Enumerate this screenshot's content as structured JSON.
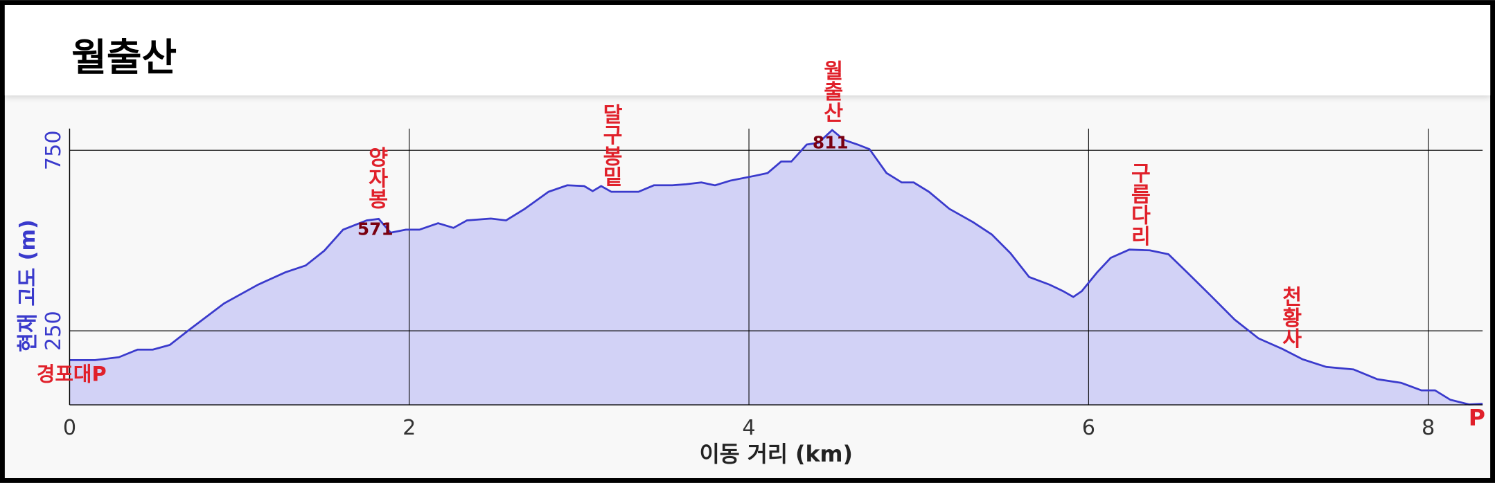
{
  "title": "월출산",
  "chart_data": {
    "type": "area",
    "xlabel": "이동 거리 (km)",
    "ylabel": "현재 고도 (m)",
    "x": [
      0,
      0.15,
      0.29,
      0.4,
      0.49,
      0.59,
      0.71,
      0.91,
      1.11,
      1.27,
      1.39,
      1.5,
      1.61,
      1.75,
      1.82,
      1.89,
      1.98,
      2.06,
      2.17,
      2.26,
      2.34,
      2.48,
      2.57,
      2.68,
      2.82,
      2.93,
      3.03,
      3.08,
      3.13,
      3.19,
      3.27,
      3.35,
      3.44,
      3.55,
      3.63,
      3.72,
      3.8,
      3.89,
      4.03,
      4.11,
      4.19,
      4.25,
      4.34,
      4.41,
      4.49,
      4.56,
      4.64,
      4.71,
      4.81,
      4.9,
      4.97,
      5.06,
      5.18,
      5.32,
      5.43,
      5.54,
      5.65,
      5.77,
      5.85,
      5.91,
      5.96,
      6.05,
      6.13,
      6.24,
      6.36,
      6.47,
      6.58,
      6.72,
      6.86,
      7.0,
      7.14,
      7.26,
      7.4,
      7.56,
      7.7,
      7.84,
      7.96,
      8.04,
      8.13,
      8.24,
      8.32
    ],
    "series": [
      {
        "color": "#3a3acc",
        "fill": "#d2d2f6",
        "values": [
          169,
          169,
          177,
          198,
          198,
          211,
          255,
          326,
          378,
          412,
          431,
          472,
          530,
          556,
          560,
          522,
          530,
          530,
          548,
          535,
          556,
          561,
          556,
          588,
          635,
          653,
          651,
          637,
          651,
          635,
          635,
          635,
          653,
          653,
          656,
          661,
          653,
          666,
          679,
          687,
          719,
          719,
          766,
          771,
          806,
          779,
          766,
          753,
          687,
          661,
          661,
          635,
          588,
          551,
          517,
          465,
          399,
          378,
          360,
          344,
          360,
          412,
          452,
          475,
          473,
          462,
          412,
          347,
          281,
          229,
          200,
          171,
          150,
          143,
          116,
          106,
          85,
          85,
          59,
          46,
          48
        ]
      }
    ],
    "xlim": [
      0,
      8.32
    ],
    "xticks": [
      0,
      2,
      4,
      6,
      8
    ],
    "ylim": [
      45,
      810
    ],
    "yticks": [
      250,
      750
    ],
    "grid": true,
    "y_axis_color": "#3a3acc",
    "annotation_color": "#e0202a",
    "value_label_color": "#7a0010",
    "annotations": [
      {
        "text": "양자봉",
        "x": 1.8,
        "value": 571
      },
      {
        "text": "달구봉밑",
        "x": 3.18
      },
      {
        "text": "월출산",
        "x": 4.48,
        "value": 811
      },
      {
        "text": "구름다리",
        "x": 6.29
      },
      {
        "text": "천황사",
        "x": 7.18
      }
    ],
    "start_label": "경포대P",
    "end_label": "P"
  }
}
